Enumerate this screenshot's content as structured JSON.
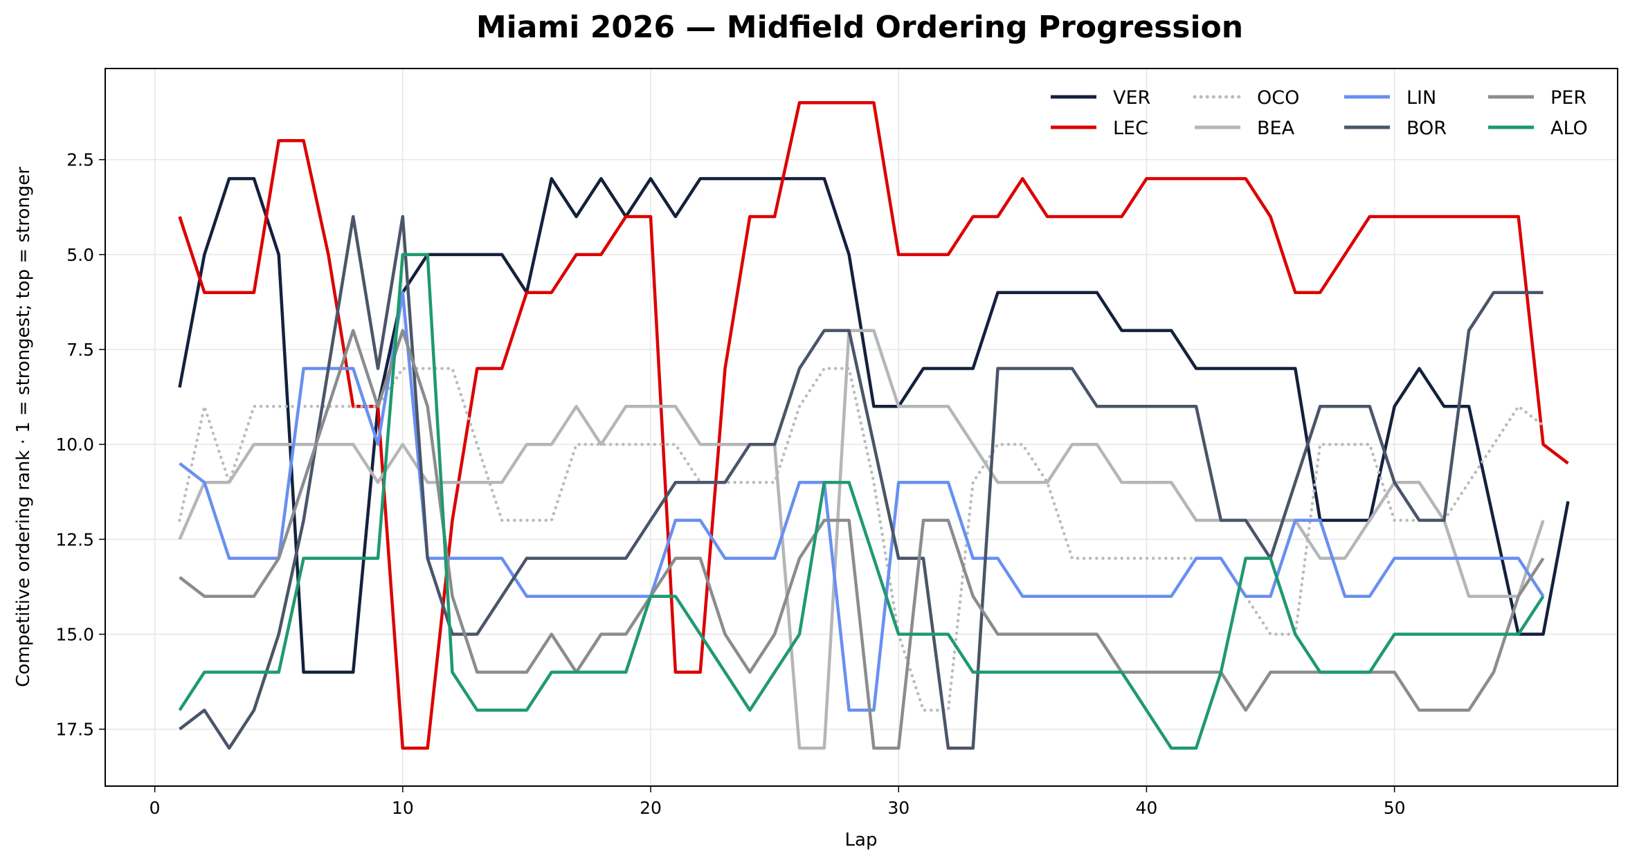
{
  "chart_data": {
    "type": "line",
    "title": "Miami 2026 — Midfield Ordering Progression",
    "xlabel": "Lap",
    "ylabel": "Competitive ordering rank · 1 = strongest; top = stronger",
    "xlim": [
      -2,
      59
    ],
    "ylim": [
      19.0,
      0.1
    ],
    "y_inverted": true,
    "grid": true,
    "legend_position": "top-right",
    "legend_columns": 4,
    "x_ticks": [
      0,
      10,
      20,
      30,
      40,
      50
    ],
    "x_tick_labels": [
      "0",
      "10",
      "20",
      "30",
      "40",
      "50"
    ],
    "y_ticks": [
      2.5,
      5.0,
      7.5,
      10.0,
      12.5,
      15.0,
      17.5
    ],
    "y_tick_labels": [
      "2.5",
      "5.0",
      "7.5",
      "10.0",
      "12.5",
      "15.0",
      "17.5"
    ],
    "series": [
      {
        "name": "VER",
        "color": "#14213d",
        "style": "solid",
        "x": [
          1,
          2,
          3,
          4,
          5,
          6,
          7,
          8,
          9,
          10,
          11,
          12,
          13,
          14,
          15,
          16,
          17,
          18,
          19,
          20,
          21,
          22,
          23,
          24,
          25,
          26,
          27,
          28,
          29,
          30,
          31,
          32,
          33,
          34,
          35,
          36,
          37,
          38,
          39,
          40,
          41,
          42,
          43,
          44,
          45,
          46,
          47,
          48,
          49,
          50,
          51,
          52,
          53,
          54,
          55,
          56,
          57
        ],
        "y": [
          8.5,
          5,
          3,
          3,
          5,
          16,
          16,
          16,
          9,
          6,
          5,
          5,
          5,
          5,
          6,
          3,
          4,
          3,
          4,
          3,
          4,
          3,
          3,
          3,
          3,
          3,
          3,
          5,
          9,
          9,
          8,
          8,
          8,
          6,
          6,
          6,
          6,
          6,
          7,
          7,
          7,
          8,
          8,
          8,
          8,
          8,
          12,
          12,
          12,
          9,
          8,
          9,
          9,
          12,
          15,
          15,
          11.5
        ]
      },
      {
        "name": "LEC",
        "color": "#dc0000",
        "style": "solid",
        "x": [
          1,
          2,
          3,
          4,
          5,
          6,
          7,
          8,
          9,
          10,
          11,
          12,
          13,
          14,
          15,
          16,
          17,
          18,
          19,
          20,
          21,
          22,
          23,
          24,
          25,
          26,
          27,
          28,
          29,
          30,
          31,
          32,
          33,
          34,
          35,
          36,
          37,
          38,
          39,
          40,
          41,
          42,
          43,
          44,
          45,
          46,
          47,
          48,
          49,
          50,
          51,
          52,
          53,
          54,
          55,
          56,
          57
        ],
        "y": [
          4,
          6,
          6,
          6,
          2,
          2,
          5,
          9,
          9,
          18,
          18,
          12,
          8,
          8,
          6,
          6,
          5,
          5,
          4,
          4,
          16,
          16,
          8,
          4,
          4,
          1,
          1,
          1,
          1,
          5,
          5,
          5,
          4,
          4,
          3,
          4,
          4,
          4,
          4,
          3,
          3,
          3,
          3,
          3,
          4,
          6,
          6,
          5,
          4,
          4,
          4,
          4,
          4,
          4,
          4,
          10,
          10.5
        ]
      },
      {
        "name": "OCO",
        "color": "#b9bbbe",
        "style": "dotted",
        "x": [
          1,
          2,
          3,
          4,
          5,
          6,
          7,
          8,
          9,
          10,
          11,
          12,
          13,
          14,
          15,
          16,
          17,
          18,
          19,
          20,
          21,
          22,
          23,
          24,
          25,
          26,
          27,
          28,
          29,
          30,
          31,
          32,
          33,
          34,
          35,
          36,
          37,
          38,
          39,
          40,
          41,
          42,
          43,
          44,
          45,
          46,
          47,
          48,
          49,
          50,
          51,
          52,
          53,
          54,
          55,
          56
        ],
        "y": [
          12,
          9,
          11,
          9,
          9,
          9,
          9,
          9,
          9,
          8,
          8,
          8,
          10,
          12,
          12,
          12,
          10,
          10,
          10,
          10,
          10,
          11,
          11,
          11,
          11,
          9,
          8,
          8,
          11,
          15,
          17,
          17,
          11,
          10,
          10,
          11,
          13,
          13,
          13,
          13,
          13,
          13,
          13,
          14,
          15,
          15,
          10,
          10,
          10,
          12,
          12,
          12,
          11,
          10,
          9,
          9.5
        ]
      },
      {
        "name": "BEA",
        "color": "#b4b6b9",
        "style": "solid",
        "x": [
          1,
          2,
          3,
          4,
          5,
          6,
          7,
          8,
          9,
          10,
          11,
          12,
          13,
          14,
          15,
          16,
          17,
          18,
          19,
          20,
          21,
          22,
          23,
          24,
          25,
          26,
          27,
          28,
          29,
          30,
          31,
          32,
          33,
          34,
          35,
          36,
          37,
          38,
          39,
          40,
          41,
          42,
          43,
          44,
          45,
          46,
          47,
          48,
          49,
          50,
          51,
          52,
          53,
          54,
          55,
          56
        ],
        "y": [
          12.5,
          11,
          11,
          10,
          10,
          10,
          10,
          10,
          11,
          10,
          11,
          11,
          11,
          11,
          10,
          10,
          9,
          10,
          9,
          9,
          9,
          10,
          10,
          10,
          10,
          18,
          18,
          7,
          7,
          9,
          9,
          9,
          10,
          11,
          11,
          11,
          10,
          10,
          11,
          11,
          11,
          12,
          12,
          12,
          12,
          12,
          13,
          13,
          12,
          11,
          11,
          12,
          14,
          14,
          14,
          12
        ]
      },
      {
        "name": "LIN",
        "color": "#6890f0",
        "style": "solid",
        "x": [
          1,
          2,
          3,
          4,
          5,
          6,
          7,
          8,
          9,
          10,
          11,
          12,
          13,
          14,
          15,
          16,
          17,
          18,
          19,
          20,
          21,
          22,
          23,
          24,
          25,
          26,
          27,
          28,
          29,
          30,
          31,
          32,
          33,
          34,
          35,
          36,
          37,
          38,
          39,
          40,
          41,
          42,
          43,
          44,
          45,
          46,
          47,
          48,
          49,
          50,
          51,
          52,
          53,
          54,
          55,
          56
        ],
        "y": [
          10.5,
          11,
          13,
          13,
          13,
          8,
          8,
          8,
          10,
          6,
          13,
          13,
          13,
          13,
          14,
          14,
          14,
          14,
          14,
          14,
          12,
          12,
          13,
          13,
          13,
          11,
          11,
          17,
          17,
          11,
          11,
          11,
          13,
          13,
          14,
          14,
          14,
          14,
          14,
          14,
          14,
          13,
          13,
          14,
          14,
          12,
          12,
          14,
          14,
          13,
          13,
          13,
          13,
          13,
          13,
          14
        ]
      },
      {
        "name": "BOR",
        "color": "#4a5568",
        "style": "solid",
        "x": [
          1,
          2,
          3,
          4,
          5,
          6,
          7,
          8,
          9,
          10,
          11,
          12,
          13,
          14,
          15,
          16,
          17,
          18,
          19,
          20,
          21,
          22,
          23,
          24,
          25,
          26,
          27,
          28,
          29,
          30,
          31,
          32,
          33,
          34,
          35,
          36,
          37,
          38,
          39,
          40,
          41,
          42,
          43,
          44,
          45,
          46,
          47,
          48,
          49,
          50,
          51,
          52,
          53,
          54,
          55,
          56
        ],
        "y": [
          17.5,
          17,
          18,
          17,
          15,
          12,
          8,
          4,
          8,
          4,
          13,
          15,
          15,
          14,
          13,
          13,
          13,
          13,
          13,
          12,
          11,
          11,
          11,
          10,
          10,
          8,
          7,
          7,
          10,
          13,
          13,
          18,
          18,
          8,
          8,
          8,
          8,
          9,
          9,
          9,
          9,
          9,
          12,
          12,
          13,
          11,
          9,
          9,
          9,
          11,
          12,
          12,
          7,
          6,
          6,
          6
        ]
      },
      {
        "name": "PER",
        "color": "#8a8c8e",
        "style": "solid",
        "x": [
          1,
          2,
          3,
          4,
          5,
          6,
          7,
          8,
          9,
          10,
          11,
          12,
          13,
          14,
          15,
          16,
          17,
          18,
          19,
          20,
          21,
          22,
          23,
          24,
          25,
          26,
          27,
          28,
          29,
          30,
          31,
          32,
          33,
          34,
          35,
          36,
          37,
          38,
          39,
          40,
          41,
          42,
          43,
          44,
          45,
          46,
          47,
          48,
          49,
          50,
          51,
          52,
          53,
          54,
          55,
          56
        ],
        "y": [
          13.5,
          14,
          14,
          14,
          13,
          11,
          9,
          7,
          9,
          7,
          9,
          14,
          16,
          16,
          16,
          15,
          16,
          15,
          15,
          14,
          13,
          13,
          15,
          16,
          15,
          13,
          12,
          12,
          18,
          18,
          12,
          12,
          14,
          15,
          15,
          15,
          15,
          15,
          16,
          16,
          16,
          16,
          16,
          17,
          16,
          16,
          16,
          16,
          16,
          16,
          17,
          17,
          17,
          16,
          14,
          13
        ]
      },
      {
        "name": "ALO",
        "color": "#1f9970",
        "style": "solid",
        "x": [
          1,
          2,
          3,
          4,
          5,
          6,
          7,
          8,
          9,
          10,
          11,
          12,
          13,
          14,
          15,
          16,
          17,
          18,
          19,
          20,
          21,
          22,
          23,
          24,
          25,
          26,
          27,
          28,
          29,
          30,
          31,
          32,
          33,
          34,
          35,
          36,
          37,
          38,
          39,
          40,
          41,
          42,
          43,
          44,
          45,
          46,
          47,
          48,
          49,
          50,
          51,
          52,
          53,
          54,
          55,
          56
        ],
        "y": [
          17,
          16,
          16,
          16,
          16,
          13,
          13,
          13,
          13,
          5,
          5,
          16,
          17,
          17,
          17,
          16,
          16,
          16,
          16,
          14,
          14,
          15,
          16,
          17,
          16,
          15,
          11,
          11,
          13,
          15,
          15,
          15,
          16,
          16,
          16,
          16,
          16,
          16,
          16,
          17,
          18,
          18,
          16,
          13,
          13,
          15,
          16,
          16,
          16,
          15,
          15,
          15,
          15,
          15,
          15,
          14
        ]
      }
    ]
  }
}
